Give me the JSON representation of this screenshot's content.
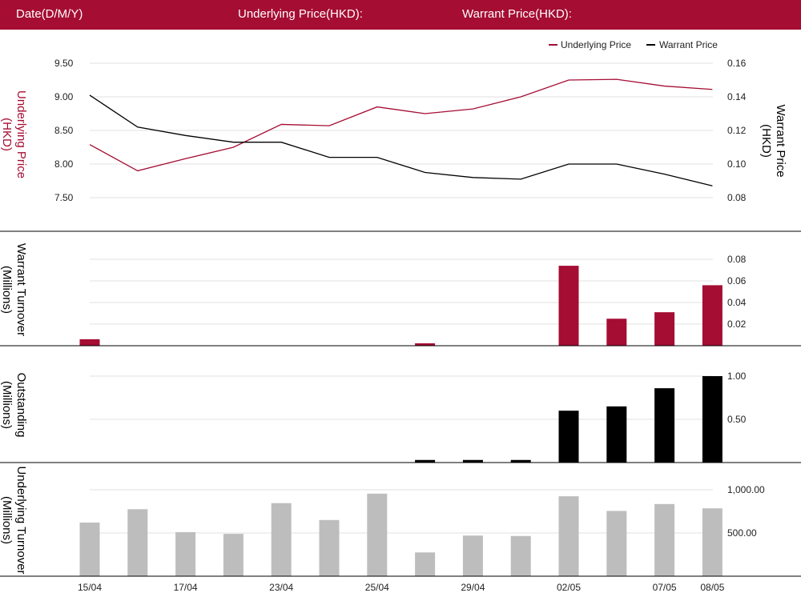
{
  "header": {
    "date_label": "Date(D/M/Y)",
    "underlying_label": "Underlying Price(HKD):",
    "warrant_label": "Warrant Price(HKD):"
  },
  "colors": {
    "header_bg": "#a50d33",
    "underlying": "#a50d33",
    "warrant": "#000000",
    "underlying_turnover": "#bdbdbd"
  },
  "chart_data": [
    {
      "type": "line",
      "x": [
        "15/04",
        "16/04",
        "17/04",
        "18/04",
        "23/04",
        "24/04",
        "25/04",
        "26/04",
        "29/04",
        "30/04",
        "02/05",
        "03/05",
        "07/05",
        "08/05"
      ],
      "legend": [
        "Underlying Price",
        "Warrant Price"
      ],
      "legend_position": "top-right",
      "series": [
        {
          "name": "Underlying Price",
          "axis": "left",
          "values": [
            8.29,
            7.9,
            8.08,
            8.25,
            8.59,
            8.57,
            8.85,
            8.75,
            8.82,
            9.0,
            9.25,
            9.26,
            9.16,
            9.11
          ]
        },
        {
          "name": "Warrant Price",
          "axis": "right",
          "values": [
            0.141,
            0.122,
            0.117,
            0.113,
            0.113,
            0.104,
            0.104,
            0.095,
            0.092,
            0.091,
            0.1,
            0.1,
            0.094,
            0.087
          ]
        }
      ],
      "ylabel": "Underlying Price (HKD)",
      "ylabel_right": "Warrant  Price (HKD)",
      "yticks": [
        "7.50",
        "8.00",
        "8.50",
        "9.00",
        "9.50"
      ],
      "ylim": [
        7.5,
        9.5
      ],
      "yticks_right": [
        "0.08",
        "0.10",
        "0.12",
        "0.14",
        "0.16"
      ],
      "ylim_right": [
        0.08,
        0.16
      ],
      "grid": true
    },
    {
      "type": "bar",
      "x": [
        "15/04",
        "16/04",
        "17/04",
        "18/04",
        "23/04",
        "24/04",
        "25/04",
        "26/04",
        "29/04",
        "30/04",
        "02/05",
        "03/05",
        "07/05",
        "08/05"
      ],
      "values": [
        0.006,
        0,
        0,
        0,
        0,
        0,
        0,
        0.0015,
        0,
        0,
        0.074,
        0.025,
        0.031,
        0.056
      ],
      "ylabel": "Warrant  Turnover (Millions)",
      "yticks": [
        "0.02",
        "0.04",
        "0.06",
        "0.08"
      ],
      "ylim": [
        0,
        0.08
      ],
      "grid": true
    },
    {
      "type": "bar",
      "x": [
        "15/04",
        "16/04",
        "17/04",
        "18/04",
        "23/04",
        "24/04",
        "25/04",
        "26/04",
        "29/04",
        "30/04",
        "02/05",
        "03/05",
        "07/05",
        "08/05"
      ],
      "values": [
        0,
        0,
        0,
        0,
        0,
        0,
        0,
        0.03,
        0.03,
        0.03,
        0.6,
        0.65,
        0.86,
        1.0
      ],
      "ylabel": "Outstanding (Millions)",
      "yticks": [
        "0.50",
        "1.00"
      ],
      "ylim": [
        0,
        1.0
      ],
      "grid": true
    },
    {
      "type": "bar",
      "x": [
        "15/04",
        "16/04",
        "17/04",
        "18/04",
        "23/04",
        "24/04",
        "25/04",
        "26/04",
        "29/04",
        "30/04",
        "02/05",
        "03/05",
        "07/05",
        "08/05"
      ],
      "values": [
        620,
        775,
        510,
        490,
        845,
        650,
        955,
        275,
        470,
        465,
        925,
        755,
        835,
        785
      ],
      "ylabel": "Underlying Turnover (Millions)",
      "yticks": [
        "500.00",
        "1,000.00"
      ],
      "ylim": [
        0,
        1000
      ],
      "xtick_labels": [
        "15/04",
        "17/04",
        "23/04",
        "25/04",
        "29/04",
        "02/05",
        "07/05",
        "08/05"
      ],
      "xtick_indices": [
        0,
        2,
        4,
        6,
        8,
        10,
        12,
        13
      ],
      "grid": true
    }
  ]
}
